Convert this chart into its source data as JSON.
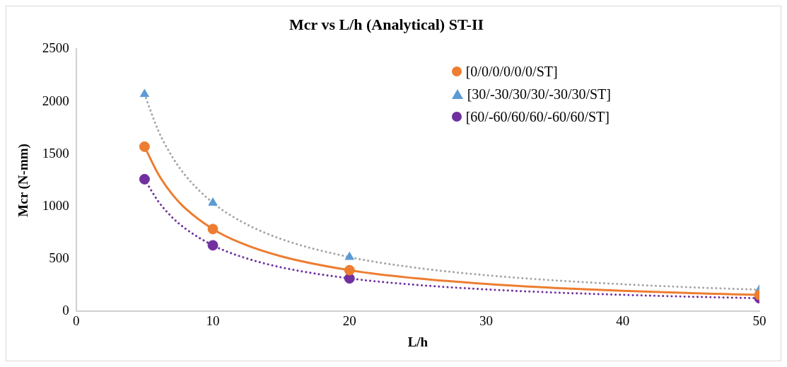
{
  "chart_data": {
    "type": "scatter",
    "title": "Mcr vs L/h (Analytical) ST-II",
    "xlabel": "L/h",
    "ylabel": "Mcr (N-mm)",
    "xlim": [
      0,
      50
    ],
    "xticks": [
      0,
      10,
      20,
      30,
      40,
      50
    ],
    "ylim": [
      0,
      2500
    ],
    "yticks": [
      0,
      500,
      1000,
      1500,
      2000,
      2500
    ],
    "grid": false,
    "legend": "top right",
    "series": [
      {
        "name": "[0/0/0/0/0/0/ST]",
        "type": "scatter",
        "marker": "circle",
        "color": "#ed7d31",
        "x": [
          5,
          10,
          20,
          50
        ],
        "values": [
          1570,
          785,
          393,
          157
        ]
      },
      {
        "name": "[30/-30/30/30/-30/30/ST]",
        "type": "scatter",
        "marker": "triangle",
        "color": "#5b9bd5",
        "x": [
          5,
          10,
          20,
          50
        ],
        "values": [
          2070,
          1035,
          518,
          207
        ]
      },
      {
        "name": "[60/-60/60/60/-60/60/ST]",
        "type": "scatter",
        "marker": "circle",
        "color": "#7030a0",
        "x": [
          5,
          10,
          20,
          50
        ],
        "values": [
          1260,
          630,
          315,
          126
        ]
      },
      {
        "type": "line",
        "marker": "none",
        "line_style": "solid",
        "color": "#ed7d31",
        "x": [
          5,
          6,
          7,
          8,
          10,
          12,
          15,
          20,
          25,
          30,
          35,
          40,
          45,
          50
        ],
        "values": [
          1570,
          1310,
          1120,
          980,
          785,
          655,
          525,
          393,
          314,
          262,
          224,
          196,
          174,
          157
        ]
      },
      {
        "type": "line",
        "marker": "none",
        "line_style": "dotted",
        "color": "#a5a5a5",
        "x": [
          5,
          6,
          7,
          8,
          10,
          12,
          15,
          20,
          25,
          30,
          35,
          40,
          45,
          50
        ],
        "values": [
          2070,
          1725,
          1479,
          1294,
          1035,
          863,
          690,
          518,
          414,
          345,
          296,
          259,
          230,
          207
        ]
      },
      {
        "type": "line",
        "marker": "none",
        "line_style": "dotted",
        "color": "#7030a0",
        "x": [
          5,
          6,
          7,
          8,
          10,
          12,
          15,
          20,
          25,
          30,
          35,
          40,
          45,
          50
        ],
        "values": [
          1260,
          1050,
          900,
          788,
          630,
          525,
          420,
          315,
          252,
          210,
          180,
          158,
          140,
          126
        ]
      }
    ]
  }
}
